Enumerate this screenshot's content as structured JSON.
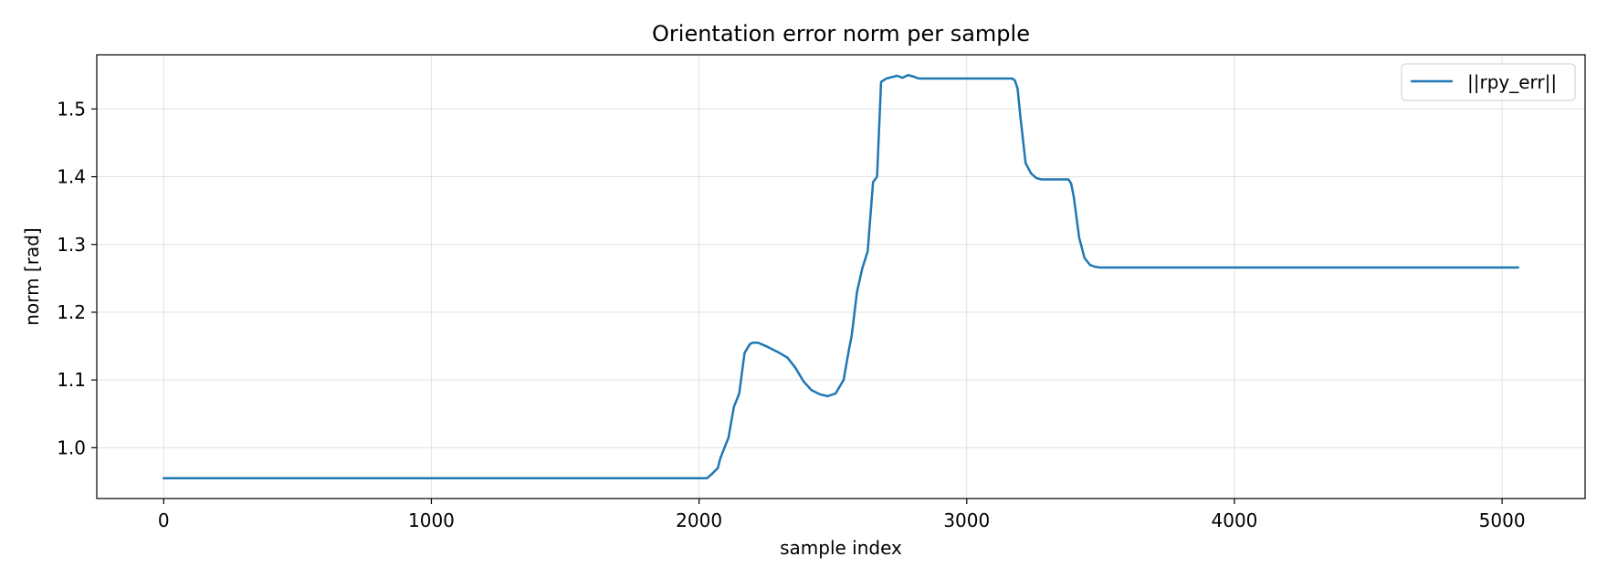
{
  "chart_data": {
    "type": "line",
    "title": "Orientation error norm per sample",
    "xlabel": "sample index",
    "ylabel": "norm [rad]",
    "xlim": [
      -250,
      5310
    ],
    "ylim": [
      0.925,
      1.58
    ],
    "xticks": [
      0,
      1000,
      2000,
      3000,
      4000,
      5000
    ],
    "xtick_labels": [
      "0",
      "1000",
      "2000",
      "3000",
      "4000",
      "5000"
    ],
    "yticks": [
      1.0,
      1.1,
      1.2,
      1.3,
      1.4,
      1.5
    ],
    "ytick_labels": [
      "1.0",
      "1.1",
      "1.2",
      "1.3",
      "1.4",
      "1.5"
    ],
    "grid": true,
    "legend_position": "upper right",
    "series": [
      {
        "name": "||rpy_err||",
        "color": "#1f77b4",
        "x": [
          0,
          500,
          1000,
          1500,
          2000,
          2030,
          2050,
          2070,
          2080,
          2100,
          2110,
          2130,
          2150,
          2170,
          2190,
          2200,
          2220,
          2250,
          2280,
          2300,
          2330,
          2360,
          2390,
          2420,
          2450,
          2480,
          2510,
          2540,
          2560,
          2570,
          2590,
          2610,
          2630,
          2650,
          2665,
          2680,
          2700,
          2710,
          2720,
          2740,
          2760,
          2780,
          2800,
          2820,
          2840,
          2860,
          2900,
          3000,
          3100,
          3150,
          3170,
          3180,
          3190,
          3200,
          3220,
          3240,
          3260,
          3280,
          3300,
          3330,
          3360,
          3380,
          3390,
          3400,
          3420,
          3440,
          3460,
          3480,
          3500,
          3600,
          4000,
          4500,
          5060
        ],
        "values": [
          0.955,
          0.955,
          0.955,
          0.955,
          0.955,
          0.955,
          0.962,
          0.97,
          0.985,
          1.005,
          1.015,
          1.06,
          1.08,
          1.14,
          1.153,
          1.155,
          1.155,
          1.15,
          1.144,
          1.14,
          1.133,
          1.118,
          1.098,
          1.085,
          1.079,
          1.076,
          1.08,
          1.1,
          1.145,
          1.165,
          1.23,
          1.265,
          1.29,
          1.392,
          1.4,
          1.54,
          1.545,
          1.546,
          1.547,
          1.549,
          1.546,
          1.55,
          1.548,
          1.545,
          1.545,
          1.545,
          1.545,
          1.545,
          1.545,
          1.545,
          1.545,
          1.542,
          1.53,
          1.49,
          1.42,
          1.405,
          1.398,
          1.396,
          1.396,
          1.396,
          1.396,
          1.396,
          1.39,
          1.37,
          1.31,
          1.28,
          1.27,
          1.267,
          1.266,
          1.266,
          1.266,
          1.266,
          1.266
        ]
      }
    ]
  }
}
